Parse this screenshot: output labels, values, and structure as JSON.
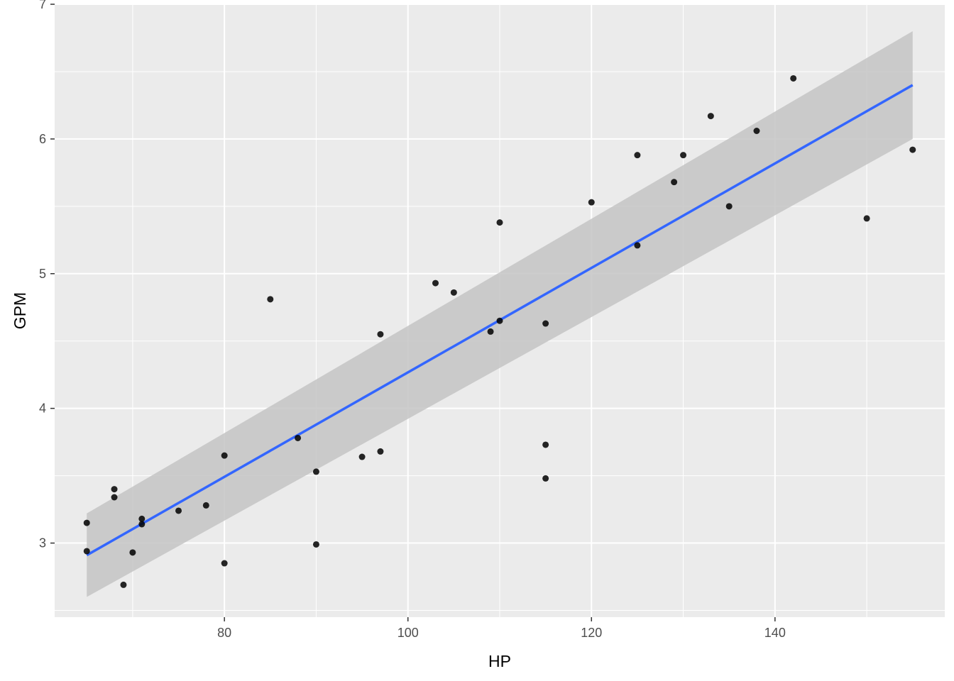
{
  "chart_data": {
    "type": "scatter",
    "title": "",
    "xlabel": "HP",
    "ylabel": "GPM",
    "xlim": [
      61.5,
      158.5
    ],
    "ylim": [
      2.45,
      7.0
    ],
    "x_ticks": [
      80,
      100,
      120,
      140
    ],
    "x_tick_labels": [
      "80",
      "100",
      "120",
      "140"
    ],
    "y_ticks": [
      3,
      4,
      5,
      6,
      7
    ],
    "y_tick_labels": [
      "3",
      "4",
      "5",
      "6",
      "7"
    ],
    "grid": true,
    "legend": "none",
    "colors": {
      "panel_background": "#ebebeb",
      "grid_major": "#ffffff",
      "points": "#000000",
      "smooth_line": "#3366ff",
      "confidence_band": "#c4c4c4"
    },
    "points": [
      [
        65,
        3.15
      ],
      [
        65,
        2.94
      ],
      [
        68,
        3.4
      ],
      [
        68,
        3.34
      ],
      [
        69,
        2.69
      ],
      [
        70,
        2.93
      ],
      [
        71,
        3.18
      ],
      [
        71,
        3.14
      ],
      [
        75,
        3.24
      ],
      [
        78,
        3.28
      ],
      [
        80,
        3.65
      ],
      [
        80,
        2.85
      ],
      [
        85,
        4.81
      ],
      [
        88,
        3.78
      ],
      [
        90,
        3.53
      ],
      [
        90,
        2.99
      ],
      [
        95,
        3.64
      ],
      [
        97,
        4.55
      ],
      [
        97,
        3.68
      ],
      [
        103,
        4.93
      ],
      [
        105,
        4.86
      ],
      [
        109,
        4.57
      ],
      [
        110,
        5.38
      ],
      [
        110,
        4.65
      ],
      [
        115,
        4.63
      ],
      [
        115,
        3.73
      ],
      [
        115,
        3.48
      ],
      [
        120,
        5.53
      ],
      [
        125,
        5.88
      ],
      [
        125,
        5.21
      ],
      [
        129,
        5.68
      ],
      [
        130,
        5.88
      ],
      [
        133,
        6.17
      ],
      [
        135,
        5.5
      ],
      [
        138,
        6.06
      ],
      [
        142,
        6.45
      ],
      [
        150,
        5.41
      ],
      [
        155,
        5.92
      ]
    ],
    "smooth": {
      "method": "lm",
      "x": [
        65,
        155
      ],
      "fit": [
        2.91,
        6.4
      ],
      "lower": [
        2.6,
        6.0
      ],
      "upper": [
        3.22,
        6.8
      ]
    }
  }
}
